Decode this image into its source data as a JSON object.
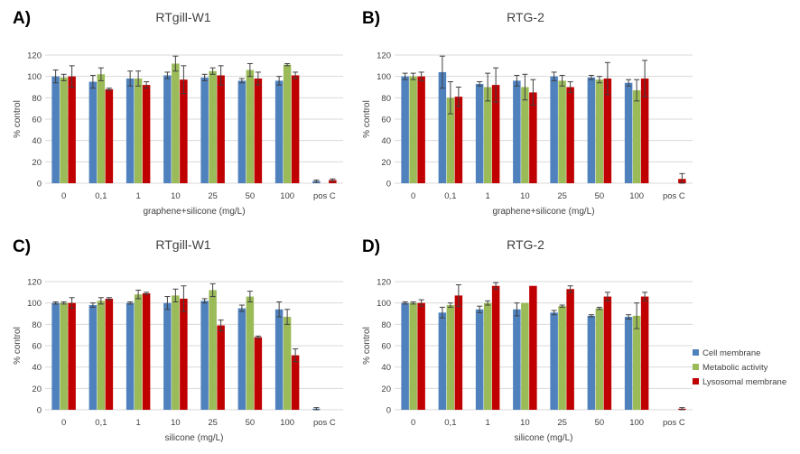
{
  "colors": {
    "cell_membrane": "#4f81bd",
    "metabolic_activity": "#9bbb59",
    "lysosomal_membrane": "#c00000"
  },
  "legend": {
    "items": [
      {
        "label": "Cell membrane",
        "color": "#4f81bd"
      },
      {
        "label": "Metabolic activity",
        "color": "#9bbb59"
      },
      {
        "label": "Lysosomal membrane",
        "color": "#c00000"
      }
    ],
    "placement": "right"
  },
  "chart_data": [
    {
      "panel": "A)",
      "type": "bar",
      "title": "RTgill-W1",
      "xlabel": "graphene+silicone (mg/L)",
      "ylabel": "% control",
      "ylim": [
        0,
        120
      ],
      "yticks": [
        0,
        20,
        40,
        60,
        80,
        100,
        120
      ],
      "grid": true,
      "categories": [
        "0",
        "0,1",
        "1",
        "10",
        "25",
        "50",
        "100",
        "pos C"
      ],
      "series": [
        {
          "name": "Cell membrane",
          "values": [
            100,
            95,
            98,
            101,
            99,
            96,
            96,
            2
          ],
          "errors": [
            6,
            6,
            7,
            3,
            3,
            2,
            4,
            1
          ]
        },
        {
          "name": "Metabolic activity",
          "values": [
            99,
            102,
            98,
            112,
            105,
            106,
            111,
            0
          ],
          "errors": [
            3,
            6,
            7,
            7,
            3,
            6,
            1,
            0
          ]
        },
        {
          "name": "Lysosomal membrane",
          "values": [
            100,
            88,
            92,
            97,
            101,
            98,
            101,
            3
          ],
          "errors": [
            10,
            1,
            3,
            13,
            9,
            6,
            3,
            1
          ]
        }
      ]
    },
    {
      "panel": "B)",
      "type": "bar",
      "title": "RTG-2",
      "xlabel": "graphene+silicone (mg/L)",
      "ylabel": "% control",
      "ylim": [
        0,
        120
      ],
      "yticks": [
        0,
        20,
        40,
        60,
        80,
        100,
        120
      ],
      "grid": true,
      "categories": [
        "0",
        "0,1",
        "1",
        "10",
        "25",
        "50",
        "100",
        "pos C"
      ],
      "series": [
        {
          "name": "Cell membrane",
          "values": [
            100,
            104,
            93,
            96,
            100,
            99,
            94,
            0
          ],
          "errors": [
            3,
            15,
            2,
            5,
            4,
            2,
            3,
            0
          ]
        },
        {
          "name": "Metabolic activity",
          "values": [
            100,
            80,
            90,
            90,
            96,
            97,
            87,
            0
          ],
          "errors": [
            3,
            15,
            13,
            12,
            5,
            3,
            10,
            0
          ]
        },
        {
          "name": "Lysosomal membrane",
          "values": [
            100,
            81,
            92,
            85,
            90,
            98,
            98,
            4
          ],
          "errors": [
            4,
            9,
            16,
            12,
            5,
            15,
            17,
            5
          ]
        }
      ]
    },
    {
      "panel": "C)",
      "type": "bar",
      "title": "RTgill-W1",
      "xlabel": "silicone (mg/L)",
      "ylabel": "% control",
      "ylim": [
        0,
        120
      ],
      "yticks": [
        0,
        20,
        40,
        60,
        80,
        100,
        120
      ],
      "grid": true,
      "categories": [
        "0",
        "0,1",
        "1",
        "10",
        "25",
        "50",
        "100",
        "pos C"
      ],
      "series": [
        {
          "name": "Cell membrane",
          "values": [
            100,
            98,
            100,
            100,
            102,
            95,
            94,
            1
          ],
          "errors": [
            1,
            2,
            1,
            6,
            2,
            3,
            7,
            1
          ]
        },
        {
          "name": "Metabolic activity",
          "values": [
            100,
            102,
            108,
            107,
            112,
            106,
            87,
            0
          ],
          "errors": [
            1,
            3,
            4,
            6,
            6,
            5,
            7,
            0
          ]
        },
        {
          "name": "Lysosomal membrane",
          "values": [
            100,
            104,
            109,
            104,
            79,
            68,
            51,
            0
          ],
          "errors": [
            5,
            1,
            1,
            12,
            5,
            1,
            6,
            0
          ]
        }
      ]
    },
    {
      "panel": "D)",
      "type": "bar",
      "title": "RTG-2",
      "xlabel": "silicone (mg/L)",
      "ylabel": "% control",
      "ylim": [
        0,
        120
      ],
      "yticks": [
        0,
        20,
        40,
        60,
        80,
        100,
        120
      ],
      "grid": true,
      "categories": [
        "0",
        "0,1",
        "1",
        "10",
        "25",
        "50",
        "100",
        "pos C"
      ],
      "series": [
        {
          "name": "Cell membrane",
          "values": [
            100,
            91,
            94,
            94,
            91,
            88,
            87,
            0
          ],
          "errors": [
            1,
            5,
            3,
            6,
            2,
            1,
            2,
            0
          ]
        },
        {
          "name": "Metabolic activity",
          "values": [
            100,
            98,
            100,
            100,
            97,
            95,
            88,
            0
          ],
          "errors": [
            1,
            2,
            2,
            0,
            1,
            1,
            12,
            0
          ]
        },
        {
          "name": "Lysosomal membrane",
          "values": [
            100,
            107,
            116,
            116,
            113,
            106,
            106,
            1
          ],
          "errors": [
            3,
            10,
            3,
            0,
            3,
            4,
            4,
            1
          ]
        }
      ]
    }
  ]
}
